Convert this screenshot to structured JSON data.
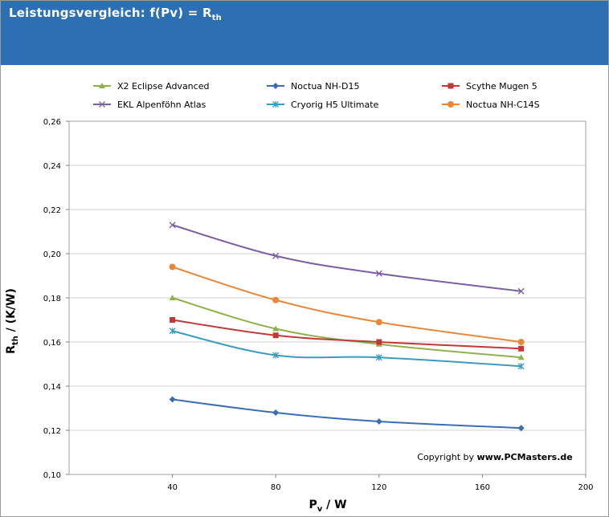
{
  "header": {
    "title_main": "Leistungsvergleich: f(Pv) = R",
    "title_sub": "th"
  },
  "copyright": {
    "prefix": "Copyright by ",
    "site": "www.PCMasters.de"
  },
  "chart_data": {
    "type": "line",
    "title": "Leistungsvergleich: f(Pv) = Rth",
    "xlabel": "Pv / W",
    "ylabel": "Rth / (K/W)",
    "xlabel_main": "P",
    "xlabel_sub": "v",
    "xlabel_unit": " / W",
    "ylabel_main": "R",
    "ylabel_sub": "th",
    "ylabel_unit": " / (K/W)",
    "xlim": [
      0,
      200
    ],
    "ylim": [
      0.1,
      0.26
    ],
    "x_ticks": [
      40,
      80,
      120,
      160,
      200
    ],
    "x_tick_labels": [
      "40",
      "80",
      "120",
      "160",
      "200"
    ],
    "y_ticks": [
      0.1,
      0.12,
      0.14,
      0.16,
      0.18,
      0.2,
      0.22,
      0.24,
      0.26
    ],
    "y_tick_labels": [
      "0,10",
      "0,12",
      "0,14",
      "0,16",
      "0,18",
      "0,20",
      "0,22",
      "0,24",
      "0,26"
    ],
    "grid": true,
    "legend_position": "top",
    "series": [
      {
        "name": "X2 Eclipse Advanced",
        "color": "#8db24a",
        "marker": "triangle",
        "x": [
          40,
          80,
          120,
          175
        ],
        "values": [
          0.18,
          0.166,
          0.159,
          0.153
        ]
      },
      {
        "name": "Noctua NH-D15",
        "color": "#3c6db4",
        "marker": "diamond",
        "x": [
          40,
          80,
          120,
          175
        ],
        "values": [
          0.134,
          0.128,
          0.124,
          0.121
        ]
      },
      {
        "name": "Scythe Mugen 5",
        "color": "#bf3a36",
        "marker": "square",
        "x": [
          40,
          80,
          120,
          175
        ],
        "values": [
          0.17,
          0.163,
          0.16,
          0.157
        ]
      },
      {
        "name": "EKL Alpenföhn Atlas",
        "color": "#7b5ea3",
        "marker": "x",
        "x": [
          40,
          80,
          120,
          175
        ],
        "values": [
          0.213,
          0.199,
          0.191,
          0.183
        ]
      },
      {
        "name": "Cryorig H5 Ultimate",
        "color": "#3a9bc0",
        "marker": "star",
        "x": [
          40,
          80,
          120,
          175
        ],
        "values": [
          0.165,
          0.154,
          0.153,
          0.149
        ]
      },
      {
        "name": "Noctua NH-C14S",
        "color": "#e8873a",
        "marker": "circle",
        "x": [
          40,
          80,
          120,
          175
        ],
        "values": [
          0.194,
          0.179,
          0.169,
          0.16
        ]
      }
    ]
  }
}
